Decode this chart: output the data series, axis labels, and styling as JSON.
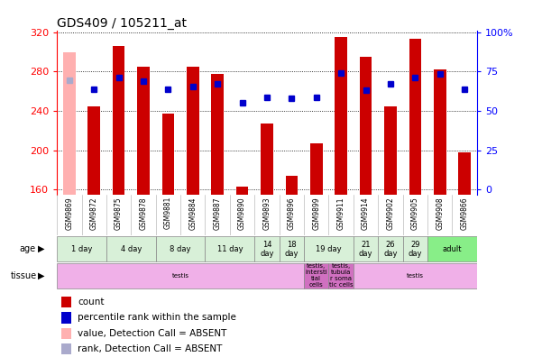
{
  "title": "GDS409 / 105211_at",
  "samples": [
    "GSM9869",
    "GSM9872",
    "GSM9875",
    "GSM9878",
    "GSM9881",
    "GSM9884",
    "GSM9887",
    "GSM9890",
    "GSM9893",
    "GSM9896",
    "GSM9899",
    "GSM9911",
    "GSM9914",
    "GSM9902",
    "GSM9905",
    "GSM9908",
    "GSM9866"
  ],
  "bar_values": [
    300,
    245,
    306,
    285,
    237,
    285,
    278,
    163,
    227,
    174,
    207,
    315,
    295,
    245,
    313,
    282,
    198
  ],
  "bar_absent": [
    true,
    false,
    false,
    false,
    false,
    false,
    false,
    false,
    false,
    false,
    false,
    false,
    false,
    false,
    false,
    false,
    false
  ],
  "dot_values": [
    271,
    262,
    274,
    270,
    262,
    265,
    268,
    248,
    254,
    253,
    254,
    279,
    261,
    268,
    274,
    278,
    262
  ],
  "dot_absent": [
    true,
    false,
    false,
    false,
    false,
    false,
    false,
    false,
    false,
    false,
    false,
    false,
    false,
    false,
    false,
    false,
    false
  ],
  "ylim": [
    155,
    322
  ],
  "y_ticks_left": [
    160,
    200,
    240,
    280,
    320
  ],
  "y_ticks_right_labels": [
    "0",
    "25",
    "50",
    "75",
    "100%"
  ],
  "y_ticks_right_vals": [
    160,
    200,
    240,
    280,
    320
  ],
  "bar_color": "#cc0000",
  "bar_absent_color": "#ffb0b0",
  "dot_color": "#0000cc",
  "dot_absent_color": "#aaaacc",
  "age_groups": [
    {
      "label": "1 day",
      "start": 0,
      "end": 2,
      "color": "#d8f0d8"
    },
    {
      "label": "4 day",
      "start": 2,
      "end": 4,
      "color": "#d8f0d8"
    },
    {
      "label": "8 day",
      "start": 4,
      "end": 6,
      "color": "#d8f0d8"
    },
    {
      "label": "11 day",
      "start": 6,
      "end": 8,
      "color": "#d8f0d8"
    },
    {
      "label": "14\nday",
      "start": 8,
      "end": 9,
      "color": "#d8f0d8"
    },
    {
      "label": "18\nday",
      "start": 9,
      "end": 10,
      "color": "#d8f0d8"
    },
    {
      "label": "19 day",
      "start": 10,
      "end": 12,
      "color": "#d8f0d8"
    },
    {
      "label": "21\nday",
      "start": 12,
      "end": 13,
      "color": "#d8f0d8"
    },
    {
      "label": "26\nday",
      "start": 13,
      "end": 14,
      "color": "#d8f0d8"
    },
    {
      "label": "29\nday",
      "start": 14,
      "end": 15,
      "color": "#d8f0d8"
    },
    {
      "label": "adult",
      "start": 15,
      "end": 17,
      "color": "#88ee88"
    }
  ],
  "tissue_groups": [
    {
      "label": "testis",
      "start": 0,
      "end": 10,
      "color": "#f0b0e8"
    },
    {
      "label": "testis,\nintersti\ntial\ncells",
      "start": 10,
      "end": 11,
      "color": "#d070c0"
    },
    {
      "label": "testis,\ntubula\nr soma\ntic cells",
      "start": 11,
      "end": 12,
      "color": "#d070c0"
    },
    {
      "label": "testis",
      "start": 12,
      "end": 17,
      "color": "#f0b0e8"
    }
  ],
  "legend_items": [
    {
      "label": "count",
      "color": "#cc0000"
    },
    {
      "label": "percentile rank within the sample",
      "color": "#0000cc"
    },
    {
      "label": "value, Detection Call = ABSENT",
      "color": "#ffb0b0"
    },
    {
      "label": "rank, Detection Call = ABSENT",
      "color": "#aaaacc"
    }
  ],
  "background_color": "#ffffff",
  "plot_bg_color": "#ffffff"
}
